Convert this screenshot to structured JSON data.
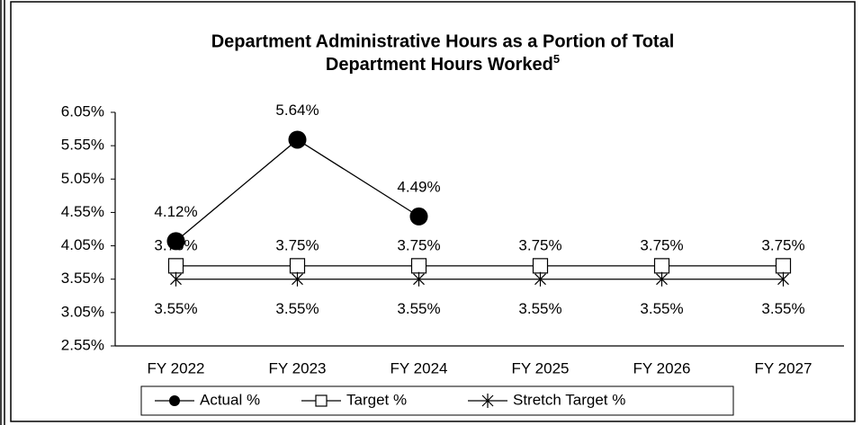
{
  "chart_data": {
    "type": "line",
    "title": [
      "Department Administrative Hours as a Portion of Total",
      "Department Hours Worked"
    ],
    "title_footnote": "5",
    "categories": [
      "FY 2022",
      "FY 2023",
      "FY 2024",
      "FY 2025",
      "FY 2026",
      "FY 2027"
    ],
    "series": [
      {
        "name": "Actual %",
        "color": "#000000",
        "marker": "circle",
        "values": [
          4.12,
          5.64,
          4.49,
          null,
          null,
          null
        ],
        "value_labels": [
          "4.12%",
          "5.64%",
          "4.49%",
          null,
          null,
          null
        ]
      },
      {
        "name": "Target %",
        "color": "#000000",
        "marker": "square",
        "values": [
          3.75,
          3.75,
          3.75,
          3.75,
          3.75,
          3.75
        ],
        "value_labels": [
          "3.75%",
          "3.75%",
          "3.75%",
          "3.75%",
          "3.75%",
          "3.75%"
        ]
      },
      {
        "name": "Stretch Target %",
        "color": "#000000",
        "marker": "asterisk",
        "values": [
          3.55,
          3.55,
          3.55,
          3.55,
          3.55,
          3.55
        ],
        "value_labels": [
          "3.55%",
          "3.55%",
          "3.55%",
          "3.55%",
          "3.55%",
          "3.55%"
        ]
      }
    ],
    "ylim": [
      2.55,
      6.05
    ],
    "yticks": [
      {
        "value": 2.55,
        "label": "2.55%"
      },
      {
        "value": 3.05,
        "label": "3.05%"
      },
      {
        "value": 3.55,
        "label": "3.55%"
      },
      {
        "value": 4.05,
        "label": "4.05%"
      },
      {
        "value": 4.55,
        "label": "4.55%"
      },
      {
        "value": 5.05,
        "label": "5.05%"
      },
      {
        "value": 5.55,
        "label": "5.55%"
      },
      {
        "value": 6.05,
        "label": "6.05%"
      }
    ],
    "grid": false,
    "legend": "bottom"
  }
}
